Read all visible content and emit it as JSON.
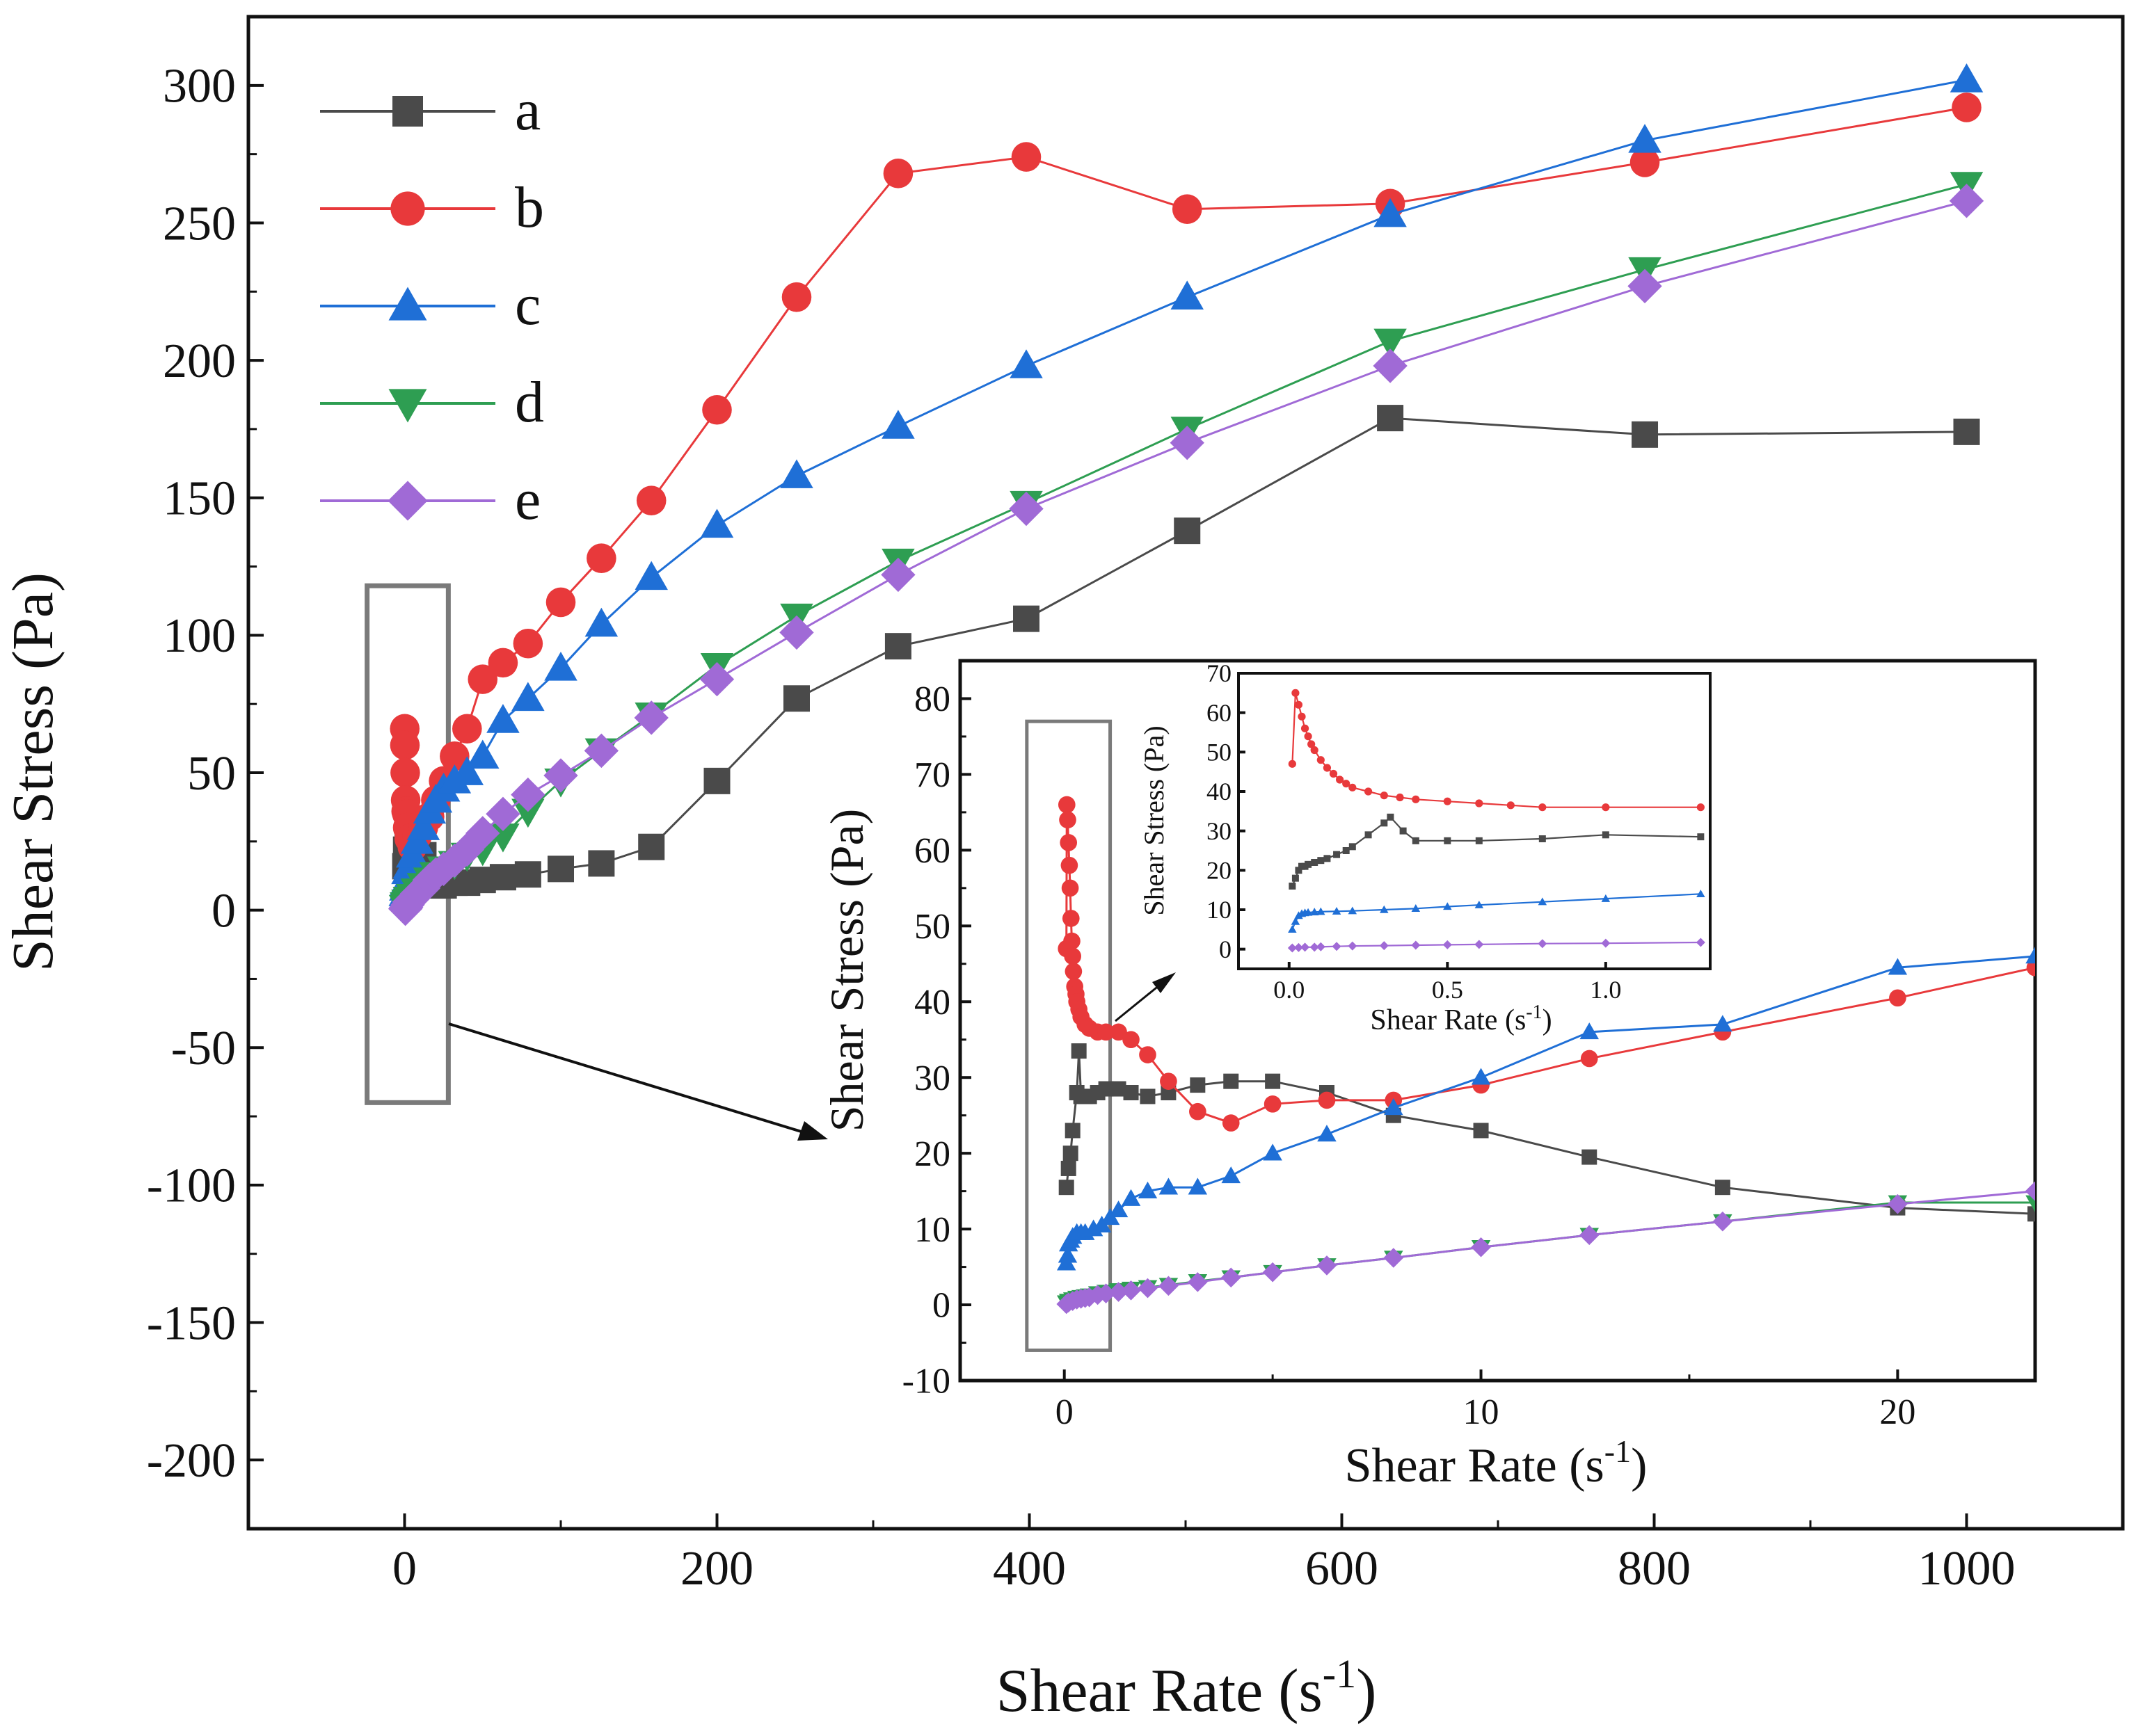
{
  "colors": {
    "a": "#4a4a4a",
    "b": "#e8393b",
    "c": "#1f6fd6",
    "d": "#2e9e52",
    "e": "#a06ad6",
    "frame": "#111111",
    "box": "#7a7a7a"
  },
  "chart_data": [
    {
      "name": "main",
      "type": "line",
      "title": "",
      "xlabel": "Shear Rate (s",
      "xlabel_sup": "-1",
      "xlabel_close": ")",
      "ylabel": "Shear Stress (Pa)",
      "xlim": [
        -100,
        1100
      ],
      "ylim": [
        -225,
        325
      ],
      "xticks": [
        0,
        200,
        400,
        600,
        800,
        1000
      ],
      "xtick_labels": [
        "0",
        "200",
        "400",
        "600",
        "800",
        "1000"
      ],
      "yticks": [
        -200,
        -150,
        -100,
        -50,
        0,
        50,
        100,
        150,
        200,
        250,
        300
      ],
      "ytick_labels": [
        "-200",
        "-150",
        "-100",
        "-50",
        "0",
        "50",
        "100",
        "150",
        "200",
        "250",
        "300"
      ],
      "legend": {
        "position": "top-left",
        "entries": [
          "a",
          "b",
          "c",
          "d",
          "e"
        ]
      },
      "series": [
        {
          "name": "a",
          "marker": "square",
          "x": [
            0.5,
            1,
            2,
            3,
            5,
            8,
            12,
            16,
            20,
            25,
            32,
            40,
            50,
            63,
            79,
            100,
            126,
            158,
            200,
            251,
            316,
            398,
            501,
            631,
            794,
            1000
          ],
          "y": [
            16,
            22,
            27,
            28,
            29,
            28,
            20,
            14,
            9,
            9,
            10,
            10,
            11,
            12,
            13,
            15,
            17,
            23,
            47,
            77,
            96,
            106,
            138,
            179,
            173,
            174
          ]
        },
        {
          "name": "b",
          "marker": "circle",
          "x": [
            0.1,
            0.2,
            0.4,
            0.7,
            1,
            1.5,
            2,
            3,
            5,
            8,
            12,
            16,
            20,
            25,
            32,
            40,
            50,
            63,
            79,
            100,
            126,
            158,
            200,
            251,
            316,
            398,
            501,
            631,
            794,
            1000
          ],
          "y": [
            66,
            60,
            50,
            40,
            36,
            35,
            30,
            26,
            23,
            27,
            30,
            34,
            40,
            47,
            56,
            66,
            84,
            90,
            97,
            112,
            128,
            149,
            182,
            223,
            268,
            274,
            255,
            257,
            272,
            292
          ]
        },
        {
          "name": "c",
          "marker": "triangle-up",
          "x": [
            0.3,
            0.6,
            1,
            2,
            3,
            5,
            8,
            12,
            16,
            20,
            25,
            32,
            40,
            50,
            63,
            79,
            100,
            126,
            158,
            200,
            251,
            316,
            398,
            501,
            631,
            794,
            1000
          ],
          "y": [
            6,
            8,
            10,
            14,
            16,
            20,
            25,
            30,
            36,
            40,
            44,
            47,
            50,
            56,
            69,
            77,
            88,
            104,
            121,
            140,
            158,
            176,
            198,
            223,
            253,
            280,
            302
          ]
        },
        {
          "name": "d",
          "marker": "triangle-down",
          "x": [
            0.5,
            1,
            2,
            3,
            5,
            8,
            12,
            16,
            20,
            25,
            32,
            40,
            50,
            63,
            79,
            100,
            126,
            158,
            200,
            251,
            316,
            398,
            501,
            631,
            794,
            1000
          ],
          "y": [
            1,
            2,
            3,
            4,
            5,
            7,
            9,
            11,
            13,
            15,
            17,
            20,
            22,
            27,
            36,
            47,
            58,
            71,
            89,
            107,
            127,
            148,
            175,
            207,
            233,
            264
          ]
        },
        {
          "name": "e",
          "marker": "diamond",
          "x": [
            0.5,
            1,
            2,
            3,
            5,
            8,
            12,
            16,
            20,
            25,
            32,
            40,
            50,
            63,
            79,
            100,
            126,
            158,
            200,
            251,
            316,
            398,
            501,
            631,
            794,
            1000
          ],
          "y": [
            0.5,
            1,
            2,
            3,
            4,
            6,
            8,
            11,
            13,
            15,
            18,
            22,
            28,
            35,
            42,
            49,
            58,
            70,
            84,
            101,
            122,
            146,
            170,
            198,
            227,
            258
          ]
        }
      ],
      "annotation": {
        "type": "box",
        "x": [
          -24,
          28
        ],
        "y": [
          -70,
          118
        ]
      }
    },
    {
      "name": "inset",
      "type": "line",
      "xlabel": "Shear Rate (s",
      "xlabel_sup": "-1",
      "xlabel_close": ")",
      "ylabel": "Shear Stress (Pa)",
      "xlim": [
        -2.5,
        23.3
      ],
      "ylim": [
        -10,
        85
      ],
      "xticks": [
        0,
        10,
        20
      ],
      "xtick_labels": [
        "0",
        "10",
        "20"
      ],
      "yticks": [
        -10,
        0,
        10,
        20,
        30,
        40,
        50,
        60,
        70,
        80
      ],
      "ytick_labels": [
        "-10",
        "0",
        "10",
        "20",
        "30",
        "40",
        "50",
        "60",
        "70",
        "80"
      ],
      "series": [
        {
          "name": "a",
          "marker": "square",
          "x": [
            0.05,
            0.1,
            0.15,
            0.2,
            0.3,
            0.35,
            0.4,
            0.5,
            0.6,
            0.8,
            1.0,
            1.3,
            1.6,
            2.0,
            2.5,
            3.2,
            4.0,
            5.0,
            6.3,
            7.9,
            10,
            12.6,
            15.8,
            20,
            23.3
          ],
          "y": [
            15.5,
            18,
            20,
            23,
            28,
            33.5,
            27.5,
            27.5,
            27.5,
            28,
            28.5,
            28.5,
            28,
            27.5,
            28,
            29,
            29.5,
            29.5,
            28,
            25,
            23,
            19.5,
            15.5,
            12.8,
            12
          ]
        },
        {
          "name": "b",
          "marker": "circle",
          "x": [
            0.05,
            0.06,
            0.08,
            0.1,
            0.12,
            0.14,
            0.16,
            0.18,
            0.2,
            0.22,
            0.25,
            0.28,
            0.3,
            0.35,
            0.4,
            0.5,
            0.6,
            0.8,
            1.0,
            1.3,
            1.6,
            2.0,
            2.5,
            3.2,
            4.0,
            5.0,
            6.3,
            7.9,
            10,
            12.6,
            15.8,
            20,
            23.3
          ],
          "y": [
            47,
            66,
            64,
            61,
            58,
            55,
            51,
            48,
            46,
            44,
            42,
            41,
            40,
            39,
            38,
            37,
            36.5,
            36,
            36,
            36,
            35,
            33,
            29.5,
            25.5,
            24,
            26.5,
            27,
            27,
            29,
            32.5,
            36,
            40.5,
            44.5
          ]
        },
        {
          "name": "c",
          "marker": "triangle-up",
          "x": [
            0.05,
            0.08,
            0.1,
            0.15,
            0.2,
            0.3,
            0.4,
            0.5,
            0.7,
            0.9,
            1.1,
            1.3,
            1.6,
            2.0,
            2.5,
            3.2,
            4.0,
            5.0,
            6.3,
            7.9,
            10,
            12.6,
            15.8,
            20,
            23.3
          ],
          "y": [
            5.5,
            6.5,
            8,
            8.5,
            9,
            9.5,
            9.5,
            9.5,
            10,
            10.5,
            11.5,
            12.5,
            14,
            15,
            15.5,
            15.5,
            17,
            20,
            22.5,
            26,
            30,
            36,
            37,
            44.5,
            46
          ]
        },
        {
          "name": "d",
          "marker": "triangle-down",
          "x": [
            0.05,
            0.1,
            0.2,
            0.3,
            0.4,
            0.5,
            0.6,
            0.8,
            1.0,
            1.3,
            1.6,
            2.0,
            2.5,
            3.2,
            4.0,
            5.0,
            6.3,
            7.9,
            10,
            12.6,
            15.8,
            20,
            23.3
          ],
          "y": [
            0.3,
            0.5,
            0.7,
            0.9,
            1.0,
            1.1,
            1.2,
            1.5,
            1.7,
            1.9,
            2.1,
            2.3,
            2.6,
            3.1,
            3.6,
            4.3,
            5.2,
            6.2,
            7.6,
            9.2,
            11,
            13.5,
            13.5
          ]
        },
        {
          "name": "e",
          "marker": "diamond",
          "x": [
            0.05,
            0.1,
            0.2,
            0.3,
            0.4,
            0.5,
            0.6,
            0.8,
            1.0,
            1.3,
            1.6,
            2.0,
            2.5,
            3.2,
            4.0,
            5.0,
            6.3,
            7.9,
            10,
            12.6,
            15.8,
            20,
            23.3
          ],
          "y": [
            0.1,
            0.3,
            0.5,
            0.7,
            0.8,
            0.9,
            1.0,
            1.3,
            1.5,
            1.7,
            1.9,
            2.2,
            2.5,
            3.0,
            3.6,
            4.3,
            5.2,
            6.2,
            7.6,
            9.2,
            11,
            13.3,
            15
          ]
        }
      ],
      "annotation": {
        "type": "box",
        "x": [
          -0.9,
          1.1
        ],
        "y": [
          -6,
          77
        ]
      }
    },
    {
      "name": "inset2",
      "type": "line",
      "xlabel": "Shear Rate (s",
      "xlabel_sup": "-1",
      "xlabel_close": ")",
      "ylabel": "Shear Stress (Pa)",
      "xlim": [
        -0.16,
        1.33
      ],
      "ylim": [
        -5,
        70
      ],
      "xticks": [
        0.0,
        0.5,
        1.0
      ],
      "xtick_labels": [
        "0.0",
        "0.5",
        "1.0"
      ],
      "yticks": [
        0,
        10,
        20,
        30,
        40,
        50,
        60,
        70
      ],
      "ytick_labels": [
        "0",
        "10",
        "20",
        "30",
        "40",
        "50",
        "60",
        "70"
      ],
      "series": [
        {
          "name": "a",
          "marker": "square",
          "x": [
            0.01,
            0.02,
            0.03,
            0.04,
            0.05,
            0.06,
            0.08,
            0.1,
            0.12,
            0.15,
            0.18,
            0.2,
            0.25,
            0.3,
            0.32,
            0.36,
            0.4,
            0.5,
            0.6,
            0.8,
            1.0,
            1.3
          ],
          "y": [
            16,
            18,
            20,
            21,
            21,
            21.5,
            22,
            22.5,
            23,
            24,
            25,
            26,
            29,
            32,
            33.5,
            30,
            27.5,
            27.5,
            27.5,
            28,
            29,
            28.5
          ]
        },
        {
          "name": "b",
          "marker": "circle",
          "x": [
            0.01,
            0.02,
            0.03,
            0.04,
            0.05,
            0.06,
            0.07,
            0.08,
            0.1,
            0.12,
            0.14,
            0.16,
            0.18,
            0.2,
            0.25,
            0.3,
            0.35,
            0.4,
            0.5,
            0.6,
            0.7,
            0.8,
            1.0,
            1.3
          ],
          "y": [
            47,
            65,
            62,
            59,
            56,
            54,
            52,
            50.5,
            48,
            46,
            44.5,
            43,
            42,
            41,
            40,
            39,
            38.5,
            38,
            37.5,
            37,
            36.5,
            36,
            36,
            36
          ]
        },
        {
          "name": "c",
          "marker": "triangle-up",
          "x": [
            0.01,
            0.02,
            0.03,
            0.04,
            0.05,
            0.06,
            0.08,
            0.1,
            0.15,
            0.2,
            0.3,
            0.4,
            0.5,
            0.6,
            0.8,
            1.0,
            1.3
          ],
          "y": [
            5,
            7,
            8.5,
            9,
            9.2,
            9.3,
            9.4,
            9.5,
            9.6,
            9.7,
            10,
            10.3,
            10.8,
            11.2,
            12,
            12.8,
            14
          ]
        },
        {
          "name": "e",
          "marker": "diamond",
          "x": [
            0.01,
            0.03,
            0.05,
            0.08,
            0.1,
            0.15,
            0.2,
            0.3,
            0.4,
            0.5,
            0.6,
            0.8,
            1.0,
            1.3
          ],
          "y": [
            0.3,
            0.4,
            0.5,
            0.5,
            0.6,
            0.7,
            0.8,
            0.9,
            1.0,
            1.1,
            1.2,
            1.4,
            1.5,
            1.7
          ]
        }
      ]
    }
  ]
}
